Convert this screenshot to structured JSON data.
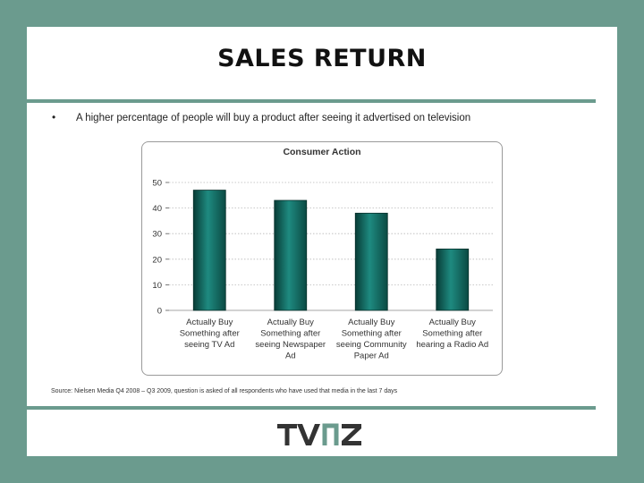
{
  "slide": {
    "title": "SALES RETURN",
    "bullet": "A higher percentage of people will buy a product after seeing it advertised on television",
    "source": "Source: Nielsen Media Q4 2008 – Q3 2009, question is asked of all respondents who have used that media in the last 7 days",
    "logo_text": "TVNZ",
    "colors": {
      "frame": "#6b9b8e",
      "bar": "#1e8a80",
      "bar_dark": "#083c36"
    }
  },
  "chart_data": {
    "type": "bar",
    "title": "Consumer Action",
    "categories": [
      [
        "Actually Buy",
        "Something after",
        "seeing TV Ad"
      ],
      [
        "Actually Buy",
        "Something after",
        "seeing Newspaper",
        "Ad"
      ],
      [
        "Actually Buy",
        "Something after",
        "seeing Community",
        "Paper Ad"
      ],
      [
        "Actually Buy",
        "Something after",
        "hearing a Radio Ad"
      ]
    ],
    "values": [
      47,
      43,
      38,
      24
    ],
    "ylim": [
      0,
      50
    ],
    "yticks": [
      0,
      10,
      20,
      30,
      40,
      50
    ],
    "grid": true
  }
}
